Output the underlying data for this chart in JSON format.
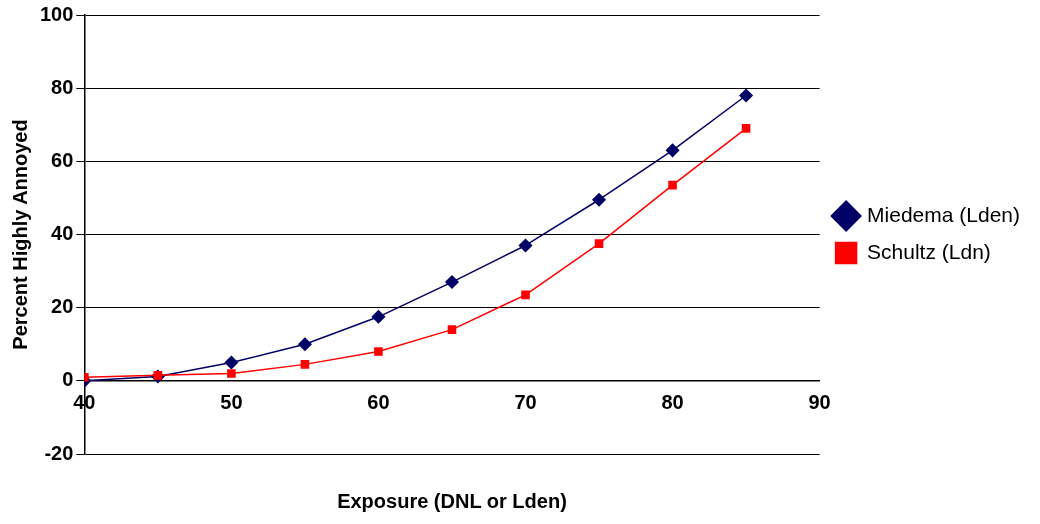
{
  "chart_data": {
    "type": "line",
    "xlabel": "Exposure (DNL or Lden)",
    "ylabel": "Percent Highly Annoyed",
    "x": [
      40,
      45,
      50,
      55,
      60,
      65,
      70,
      75,
      80,
      85
    ],
    "series": [
      {
        "name": "Miedema (Lden)",
        "color": "#000066",
        "marker": "diamond",
        "values": [
          0,
          1.2,
          5,
          10,
          17.5,
          27,
          37,
          49.5,
          63,
          78
        ]
      },
      {
        "name": "Schultz (Ldn)",
        "color": "#ff0000",
        "marker": "square",
        "values": [
          1,
          1.5,
          2,
          4.5,
          8,
          14,
          23.5,
          37.5,
          53.5,
          69
        ]
      }
    ],
    "xlim": [
      40,
      90
    ],
    "xticks": [
      40,
      50,
      60,
      70,
      80,
      90
    ],
    "ylim": [
      -20,
      100
    ],
    "yticks": [
      -20,
      0,
      20,
      40,
      60,
      80,
      100
    ],
    "grid": "y",
    "legend": "right",
    "line_style": "solid"
  }
}
